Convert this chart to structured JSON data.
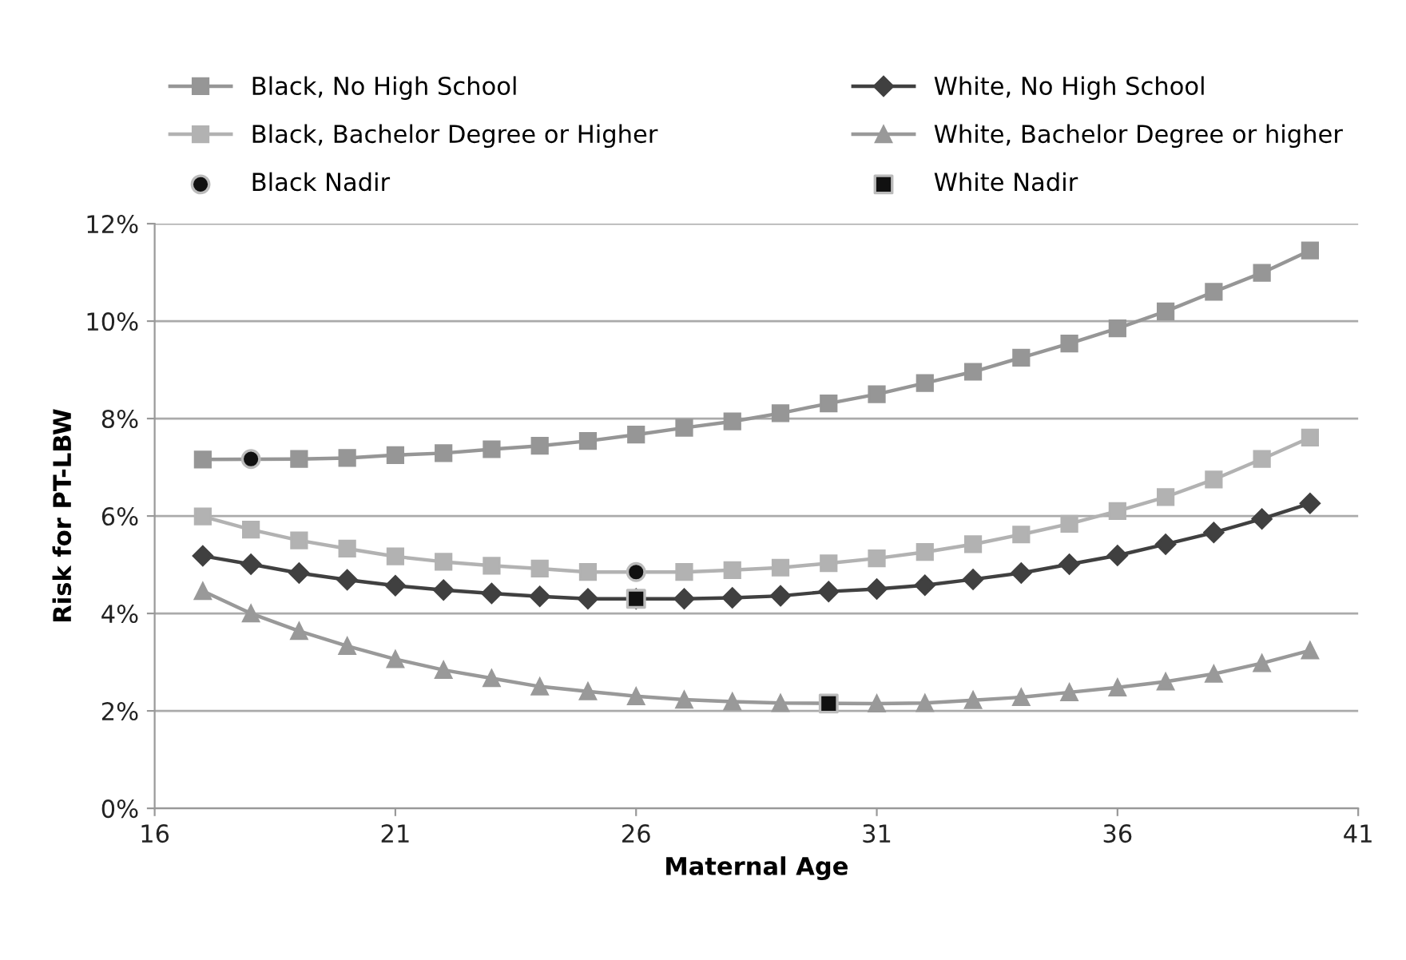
{
  "chart_data": {
    "type": "line",
    "xlabel": "Maternal Age",
    "ylabel": "Risk for PT-LBW",
    "x": [
      17,
      18,
      19,
      20,
      21,
      22,
      23,
      24,
      25,
      26,
      27,
      28,
      29,
      30,
      31,
      32,
      33,
      34,
      35,
      36,
      37,
      38,
      39,
      40
    ],
    "series": [
      {
        "name": "Black, No High School",
        "color": "#969696",
        "marker": "square",
        "values": [
          7.16,
          null,
          7.17,
          7.19,
          7.25,
          7.29,
          7.37,
          7.44,
          7.54,
          7.67,
          7.81,
          7.94,
          8.11,
          8.31,
          8.5,
          8.73,
          8.96,
          9.25,
          9.54,
          9.85,
          10.2,
          10.6,
          10.99,
          11.45
        ]
      },
      {
        "name": "White, No High School",
        "color": "#404040",
        "marker": "diamond",
        "values": [
          5.18,
          5.01,
          4.83,
          4.69,
          4.57,
          4.48,
          4.41,
          4.35,
          4.3,
          4.3,
          4.3,
          4.32,
          4.36,
          4.45,
          4.5,
          4.58,
          4.7,
          4.83,
          5.01,
          5.19,
          5.42,
          5.66,
          5.94,
          6.26
        ]
      },
      {
        "name": "Black, Bachelor Degree or Higher",
        "color": "#b2b2b2",
        "marker": "square",
        "values": [
          5.99,
          5.72,
          5.5,
          5.33,
          5.17,
          5.06,
          4.98,
          4.92,
          4.85,
          null,
          4.85,
          4.89,
          4.94,
          5.03,
          5.13,
          5.26,
          5.42,
          5.62,
          5.84,
          6.1,
          6.39,
          6.75,
          7.17,
          7.61
        ]
      },
      {
        "name": "White, Bachelor Degree or higher",
        "color": "#999999",
        "marker": "triangle",
        "values": [
          4.46,
          4.0,
          3.64,
          3.33,
          3.06,
          2.84,
          2.67,
          2.5,
          2.4,
          2.3,
          2.23,
          2.19,
          2.16,
          null,
          2.15,
          2.16,
          2.22,
          2.28,
          2.38,
          2.48,
          2.6,
          2.76,
          2.98,
          3.24
        ]
      },
      {
        "name": "Black Nadir",
        "type": "scatter",
        "color": "#111111",
        "marker": "circle",
        "x": [
          18,
          26
        ],
        "values": [
          7.17,
          4.85
        ]
      },
      {
        "name": "White Nadir",
        "type": "scatter",
        "color": "#111111",
        "marker": "square",
        "x": [
          26,
          30
        ],
        "values": [
          4.3,
          2.15
        ]
      }
    ],
    "xlim": [
      16,
      41
    ],
    "xticks": [
      16,
      21,
      26,
      31,
      36,
      41
    ],
    "ylim": [
      0,
      12
    ],
    "yticks": [
      {
        "value": 0,
        "label": "0%"
      },
      {
        "value": 2,
        "label": "2%"
      },
      {
        "value": 4,
        "label": "4%"
      },
      {
        "value": 6,
        "label": "6%"
      },
      {
        "value": 8,
        "label": "8%"
      },
      {
        "value": 10,
        "label": "10%"
      },
      {
        "value": 12,
        "label": "12%"
      }
    ],
    "grid": "y",
    "legend": "top",
    "line_style": "solid"
  }
}
